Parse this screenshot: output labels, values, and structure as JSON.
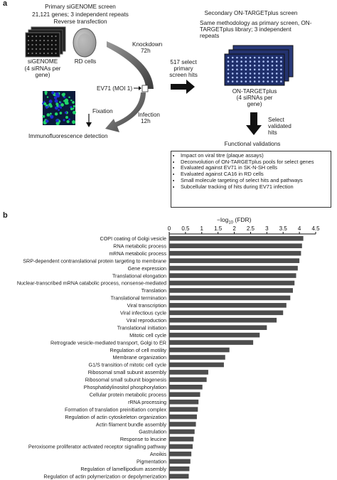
{
  "panel_a": {
    "label": "a",
    "primary": {
      "title": "Primary siGENOME screen",
      "line2": "21,121 genes; 3 independent repeats",
      "line3": "Reverse transfection",
      "sigenome": "siGENOME",
      "rd_cells": "RD cells",
      "sirna_note": "(4 siRNAs per gene)"
    },
    "knockdown": "Knockdown",
    "knockdown_time": "72h",
    "ev71": "EV71 (MOI 1)",
    "fixation": "Fixation",
    "infection": "Infection",
    "infection_time": "12h",
    "immuno": "Immunofluorescence detection",
    "select_hits": "517 select primary screen hits",
    "secondary": {
      "title": "Secondary ON-TARGETplus screen",
      "line2": "Same methodology as primary screen, ON-",
      "line3": "TARGETplus library; 3 independent",
      "line4": "repeats",
      "plate_label": "ON-TARGETplus",
      "sirna_note1": "(4 siRNAs per",
      "sirna_note2": "gene)"
    },
    "select_validated": "Select validated hits",
    "functional": "Functional validations",
    "bullets": [
      "Impact on viral titre (plaque assays)",
      "Deconvolution of ON-TARGETplus pools for select genes",
      "Evaluated against EV71 in SK-N-SH cells",
      "Evaluated against CA16 in RD cells",
      "Small molecule targeting of select hits and pathways",
      "Subcellular tracking of hits during EV71 infection"
    ],
    "colors": {
      "arrow": "#4a4a4a",
      "plate": "#1f2f6b",
      "plate_dot": "#b0c4ff",
      "cell_green": "#1fd46a",
      "cell_blue": "#1e2bd0"
    }
  },
  "panel_b": {
    "label": "b",
    "axis_label": "−log",
    "axis_sub": "10",
    "axis_tail": " (FDR)",
    "bar_color": "#4d4d4d"
  },
  "chart_data": {
    "type": "bar",
    "orientation": "horizontal",
    "xlabel": "−log10 (FDR)",
    "xlim": [
      0,
      4.5
    ],
    "xticks": [
      0,
      0.5,
      1,
      1.5,
      2,
      2.5,
      3,
      3.5,
      4,
      4.5
    ],
    "tick_labels": [
      "0",
      "0.5",
      "1",
      "1.5",
      "2",
      "2.5",
      "3",
      "3.5",
      "4",
      "4.5"
    ],
    "categories": [
      "COPI coating of Golgi vesicle",
      "RNA metabolic process",
      "mRNA metabolic process",
      "SRP-dependent contranslational protein targeting to membrane",
      "Gene expression",
      "Translational elongation",
      "Nuclear-transcribed mRNA catabolic process, nonsense-mediated",
      "Translation",
      "Translational termination",
      "Viral transcription",
      "Viral infectious cycle",
      "Viral reproduction",
      "Translational initiation",
      "Mitotic cell cycle",
      "Retrograde vesicle-mediated transport, Golgi to ER",
      "Regulation of cell motility",
      "Membrane organization",
      "G1/S transition of mitotic cell cycle",
      "Ribosomal small subunit assembly",
      "Ribosomal small subunit biogenesis",
      "Phosphatidylinositol phosphorylation",
      "Cellular protein metabolic process",
      "rRNA processing",
      "Formation of translation preinitiation complex",
      "Regulation of actin cytoskeleton organization",
      "Actin filament bundle assembly",
      "Gastrulation",
      "Response to leucine",
      "Peroxisome proliferator activated receptor signalling pathway",
      "Anoikis",
      "Pigmentation",
      "Regulation of lamellipodium assembly",
      "Regulation of actin polymerization or depolymerization"
    ],
    "values": [
      4.12,
      4.08,
      4.05,
      4.0,
      3.95,
      3.9,
      3.85,
      3.8,
      3.72,
      3.6,
      3.5,
      3.3,
      3.0,
      2.78,
      2.58,
      1.85,
      1.72,
      1.68,
      1.2,
      1.15,
      1.02,
      0.95,
      0.9,
      0.88,
      0.85,
      0.82,
      0.78,
      0.75,
      0.72,
      0.68,
      0.65,
      0.62,
      0.6
    ],
    "legend": "none",
    "grid": false
  }
}
